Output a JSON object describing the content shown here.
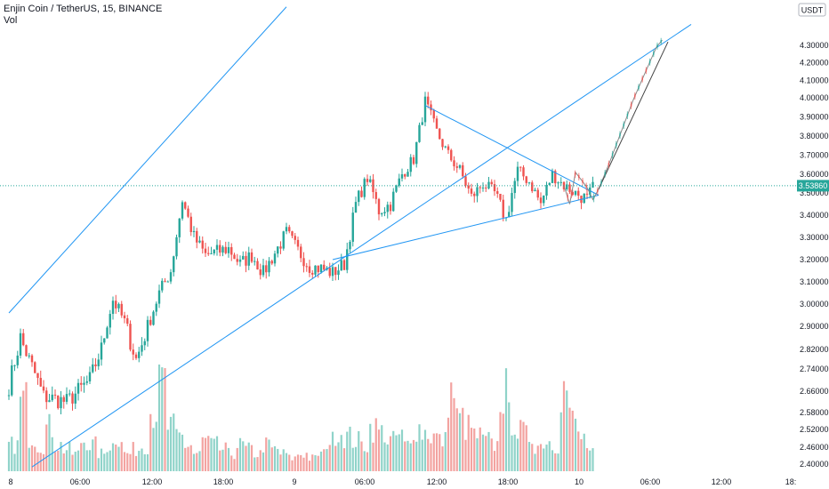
{
  "legend": {
    "title": "Enjin Coin / TetherUS, 15, BINANCE",
    "volume_label": "Vol"
  },
  "colors": {
    "up": "#26a69a",
    "down": "#ef5350",
    "vol_up": "#8fd3c9",
    "vol_down": "#f3a3a0",
    "trendline": "#2196f3",
    "projection": "#444444",
    "price_line": "#26a69a",
    "axis_text": "#131722"
  },
  "chart_data": {
    "type": "candlestick",
    "symbol": "Enjin Coin / TetherUS",
    "timeframe": "15",
    "exchange": "BINANCE",
    "currency": "USDT",
    "current_price": 3.5386,
    "current_price_label": "3.53860",
    "y_ticks": [
      "4.30000",
      "4.20000",
      "4.10000",
      "4.00000",
      "3.90000",
      "3.80000",
      "3.70000",
      "3.60000",
      "3.50000",
      "3.40000",
      "3.30000",
      "3.20000",
      "3.10000",
      "3.00000",
      "2.90000",
      "2.82000",
      "2.74000",
      "2.66000",
      "2.58000",
      "2.52000",
      "2.46000",
      "2.40000"
    ],
    "x_ticks": [
      "8",
      "06:00",
      "12:00",
      "18:00",
      "9",
      "06:00",
      "12:00",
      "18:00",
      "10",
      "06:00",
      "12:00",
      "18:"
    ],
    "price_path": [
      [
        "8 00:00",
        2.68
      ],
      [
        "8 01:00",
        2.86
      ],
      [
        "8 03:00",
        2.64
      ],
      [
        "8 05:00",
        2.62
      ],
      [
        "8 07:00",
        2.7
      ],
      [
        "8 08:00",
        2.82
      ],
      [
        "8 09:00",
        3.02
      ],
      [
        "8 10:00",
        2.92
      ],
      [
        "8 11:00",
        2.78
      ],
      [
        "8 12:00",
        2.9
      ],
      [
        "8 13:00",
        3.05
      ],
      [
        "8 14:00",
        3.15
      ],
      [
        "8 15:00",
        3.47
      ],
      [
        "8 16:00",
        3.3
      ],
      [
        "8 17:00",
        3.22
      ],
      [
        "8 19:00",
        3.25
      ],
      [
        "8 20:00",
        3.18
      ],
      [
        "8 21:00",
        3.22
      ],
      [
        "8 22:00",
        3.14
      ],
      [
        "9 00:00",
        3.32
      ],
      [
        "9 01:00",
        3.24
      ],
      [
        "9 02:00",
        3.17
      ],
      [
        "9 03:00",
        3.16
      ],
      [
        "9 04:00",
        3.14
      ],
      [
        "9 05:00",
        3.18
      ],
      [
        "9 06:00",
        3.45
      ],
      [
        "9 07:00",
        3.58
      ],
      [
        "9 08:00",
        3.42
      ],
      [
        "9 09:00",
        3.45
      ],
      [
        "9 10:00",
        3.6
      ],
      [
        "9 11:00",
        3.68
      ],
      [
        "9 12:00",
        3.98
      ],
      [
        "9 13:00",
        3.82
      ],
      [
        "9 14:00",
        3.7
      ],
      [
        "9 15:00",
        3.62
      ],
      [
        "9 16:00",
        3.48
      ],
      [
        "9 17:00",
        3.55
      ],
      [
        "9 18:00",
        3.5
      ],
      [
        "9 19:00",
        3.38
      ],
      [
        "9 20:00",
        3.62
      ],
      [
        "9 21:00",
        3.56
      ],
      [
        "9 22:00",
        3.45
      ],
      [
        "9 23:00",
        3.6
      ],
      [
        "10 00:00",
        3.54
      ],
      [
        "10 01:00",
        3.5
      ],
      [
        "10 02:00",
        3.47
      ],
      [
        "10 02:30",
        3.53
      ]
    ],
    "volume_path": [
      0.3,
      0.8,
      0.4,
      0.3,
      0.5,
      0.3,
      0.25,
      0.2,
      0.35,
      0.3,
      0.2,
      0.3,
      0.4,
      0.2,
      0.25,
      0.3,
      0.7,
      1.0,
      0.5,
      0.4,
      0.3,
      0.2,
      0.35,
      0.3,
      0.25,
      0.2,
      0.3,
      0.25,
      0.2,
      0.3,
      0.25,
      0.2,
      0.15,
      0.2,
      0.15,
      0.2,
      0.35,
      0.45,
      0.4,
      0.35,
      0.3,
      0.5,
      0.45,
      0.35,
      0.4,
      0.3,
      0.5,
      0.45,
      0.4,
      0.35,
      0.9,
      0.6,
      0.5,
      0.4,
      0.35,
      0.3,
      0.9,
      0.6,
      0.45,
      0.4,
      0.3,
      0.35,
      0.3,
      0.95,
      0.6,
      0.4,
      0.2
    ],
    "annotations": [
      {
        "type": "trendline",
        "from": [
          "8 00:00",
          2.96
        ],
        "to": [
          "9 00:00",
          4.52
        ]
      },
      {
        "type": "trendline",
        "from": [
          "8 02:00",
          2.39
        ],
        "to": [
          "10 11:00",
          4.42
        ]
      },
      {
        "type": "trendline",
        "from": [
          "9 04:00",
          3.2
        ],
        "to": [
          "10 03:00",
          3.49
        ]
      },
      {
        "type": "trendline",
        "from": [
          "9 12:00",
          3.96
        ],
        "to": [
          "10 03:00",
          3.49
        ]
      },
      {
        "type": "projection_path",
        "points": [
          [
            "10 00:00",
            3.54
          ],
          [
            "10 00:30",
            3.45
          ],
          [
            "10 01:00",
            3.61
          ],
          [
            "10 02:00",
            3.53
          ],
          [
            "10 02:30",
            3.47
          ],
          [
            "10 03:00",
            3.52
          ],
          [
            "10 04:00",
            3.67
          ],
          [
            "10 05:00",
            3.83
          ],
          [
            "10 06:00",
            3.99
          ],
          [
            "10 07:00",
            4.14
          ],
          [
            "10 08:00",
            4.29
          ],
          [
            "10 08:30",
            4.33
          ]
        ]
      },
      {
        "type": "projection_line",
        "from": [
          "10 03:00",
          3.52
        ],
        "to": [
          "10 09:00",
          4.32
        ]
      }
    ]
  }
}
